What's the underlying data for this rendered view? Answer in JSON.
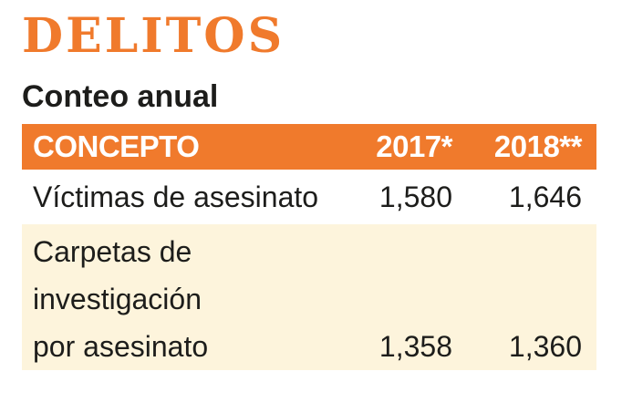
{
  "title": "DELITOS",
  "subtitle": "Conteo anual",
  "colors": {
    "accent": "#f07a2c",
    "header_text": "#ffffff",
    "alt_row": "#fdf4dc",
    "text": "#1d1d1b"
  },
  "chart_data": {
    "type": "table",
    "title": "DELITOS",
    "subtitle": "Conteo anual",
    "columns": [
      "CONCEPTO",
      "2017*",
      "2018**"
    ],
    "rows": [
      {
        "concepto_lines": [
          "Víctimas de asesinato"
        ],
        "values": [
          "1,580",
          "1,646"
        ]
      },
      {
        "concepto_lines": [
          "Carpetas de",
          "investigación",
          "por asesinato"
        ],
        "values": [
          "1,358",
          "1,360"
        ]
      }
    ]
  }
}
